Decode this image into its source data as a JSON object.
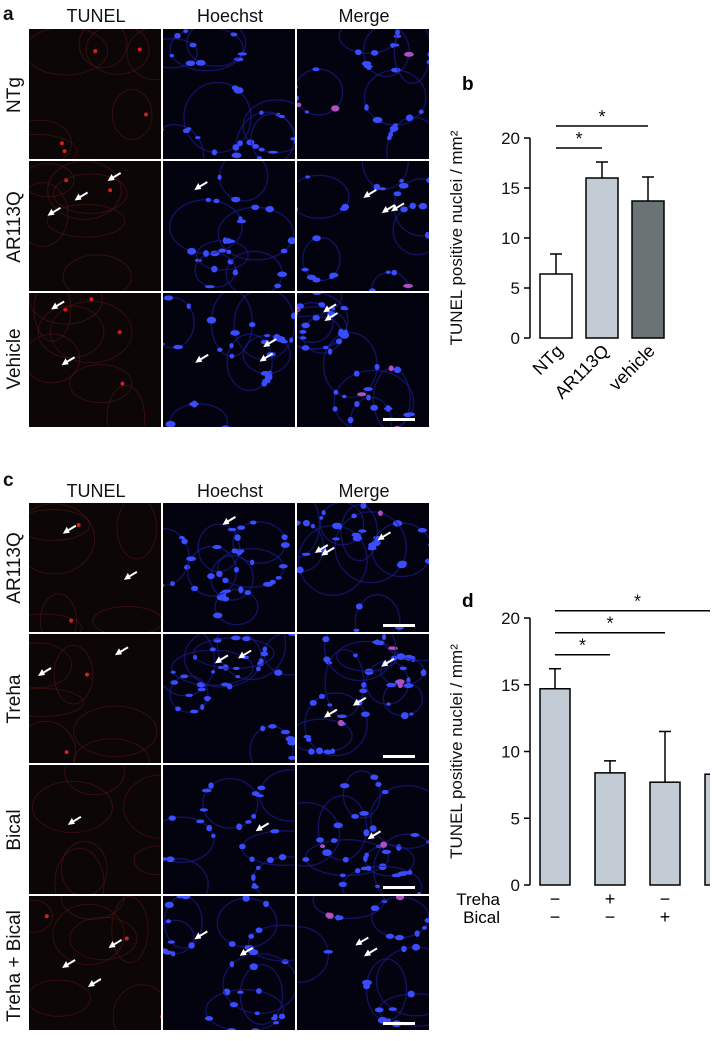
{
  "panel_a": {
    "label": "a",
    "columns": [
      "TUNEL",
      "Hoechst",
      "Merge"
    ],
    "rows": [
      "NTg",
      "AR113Q",
      "Vehicle"
    ]
  },
  "panel_c": {
    "label": "c",
    "columns": [
      "TUNEL",
      "Hoechst",
      "Merge"
    ],
    "rows": [
      "AR113Q",
      "Treha",
      "Bical",
      "Treha + Bical"
    ]
  },
  "chart_data": [
    {
      "panel": "b",
      "type": "bar",
      "categories": [
        "NTg",
        "AR113Q",
        "vehicle"
      ],
      "values": [
        6.4,
        16.0,
        13.7
      ],
      "errors": [
        2.0,
        1.6,
        2.4
      ],
      "colors": [
        "#ffffff",
        "#c3ccd4",
        "#6b7475"
      ],
      "ylabel": "TUNEL positive nuclei / mm²",
      "ylim": [
        0,
        20
      ],
      "yticks": [
        0,
        5,
        10,
        15,
        20
      ],
      "significance": [
        {
          "pair": [
            0,
            1
          ],
          "label": "*"
        },
        {
          "pair": [
            0,
            2
          ],
          "label": "*"
        }
      ]
    },
    {
      "panel": "d",
      "type": "bar",
      "categories": [
        "1",
        "2",
        "3",
        "4"
      ],
      "values": [
        14.7,
        8.4,
        7.7,
        8.3
      ],
      "errors": [
        1.5,
        0.9,
        3.8,
        1.2
      ],
      "colors": [
        "#c3ccd4",
        "#c3ccd4",
        "#c3ccd4",
        "#c3ccd4"
      ],
      "ylabel": "TUNEL positive nuclei / mm²",
      "ylim": [
        0,
        20
      ],
      "yticks": [
        0,
        5,
        10,
        15,
        20
      ],
      "conditions": [
        {
          "name": "Treha",
          "values": [
            "−",
            "+",
            "−",
            "+"
          ]
        },
        {
          "name": "Bical",
          "values": [
            "−",
            "−",
            "+",
            "+"
          ]
        }
      ],
      "significance": [
        {
          "pair": [
            0,
            1
          ],
          "label": "*"
        },
        {
          "pair": [
            0,
            2
          ],
          "label": "*"
        },
        {
          "pair": [
            0,
            3
          ],
          "label": "*"
        }
      ]
    }
  ]
}
